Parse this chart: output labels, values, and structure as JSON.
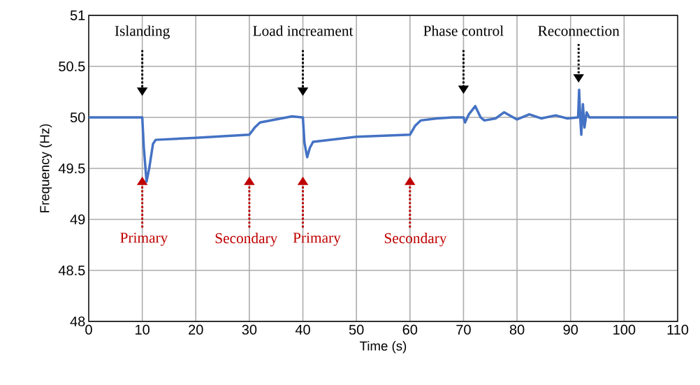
{
  "chart_data": {
    "type": "line",
    "xlabel": "Time (s)",
    "ylabel": "Frequency (Hz)",
    "color": "#4472c4",
    "grid": true,
    "xlim": [
      0,
      110
    ],
    "ylim": [
      48,
      51
    ],
    "xticks": [
      0,
      10,
      20,
      30,
      40,
      50,
      60,
      70,
      80,
      90,
      100,
      110
    ],
    "yticks": [
      48,
      48.5,
      49,
      49.5,
      50,
      50.5,
      51
    ],
    "x": [
      0,
      10,
      10.3,
      10.8,
      11.3,
      12,
      12.5,
      20,
      30,
      31,
      32,
      35,
      38,
      39.8,
      40,
      40.3,
      40.8,
      41.3,
      41.9,
      50,
      60,
      61,
      62,
      65,
      68,
      70,
      70.3,
      71,
      72.2,
      73.2,
      73.9,
      76,
      77.6,
      80,
      82.3,
      84.5,
      87.2,
      89.4,
      91.4,
      91.6,
      91.8,
      92.0,
      92.3,
      92.6,
      93,
      93.5,
      110
    ],
    "values": [
      50,
      50,
      49.7,
      49.37,
      49.5,
      49.74,
      49.78,
      49.8,
      49.83,
      49.9,
      49.95,
      49.98,
      50.01,
      50,
      50,
      49.75,
      49.61,
      49.7,
      49.76,
      49.81,
      49.83,
      49.92,
      49.97,
      49.99,
      50,
      50,
      49.95,
      50.03,
      50.11,
      50,
      49.97,
      49.99,
      50.05,
      49.98,
      50.03,
      49.99,
      50.02,
      49.99,
      50,
      50.27,
      50,
      49.83,
      50.13,
      49.9,
      50.05,
      50,
      50
    ],
    "annotations": [
      "Islanding",
      "Load increament",
      "Phase control",
      "Reconnection",
      "Primary",
      "Secondary",
      "Primary",
      "Secondary"
    ]
  }
}
